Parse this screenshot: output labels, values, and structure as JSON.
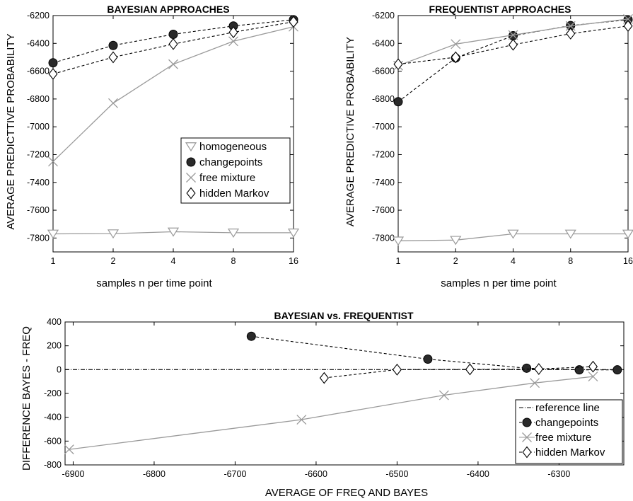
{
  "chart_data": [
    {
      "type": "line",
      "title": "BAYESIAN APPROACHES",
      "xlabel": "samples n per time point",
      "ylabel": "AVERAGE PREDICTTIVE PROBABILITY",
      "x_scale": "log2",
      "categories": [
        "1",
        "2",
        "4",
        "8",
        "16"
      ],
      "x": [
        1,
        2,
        4,
        8,
        16
      ],
      "ylim": [
        -7900,
        -6200
      ],
      "yticks": [
        -7800,
        -7600,
        -7400,
        -7200,
        -7000,
        -6800,
        -6600,
        -6400,
        -6200
      ],
      "grid": false,
      "legend_position": "right-middle",
      "series": [
        {
          "name": "homogeneous",
          "marker": "triangle-down",
          "line": "solid",
          "color": "#9a9a9a",
          "values": [
            -7770,
            -7768,
            -7755,
            -7762,
            -7762
          ]
        },
        {
          "name": "changepoints",
          "marker": "circle-filled",
          "line": "dashed",
          "color": "#000000",
          "values": [
            -6540,
            -6415,
            -6335,
            -6275,
            -6230
          ]
        },
        {
          "name": "free mixture",
          "marker": "x",
          "line": "solid",
          "color": "#9a9a9a",
          "values": [
            -7250,
            -6830,
            -6550,
            -6385,
            -6280
          ]
        },
        {
          "name": "hidden Markov",
          "marker": "diamond",
          "line": "dashed",
          "color": "#000000",
          "values": [
            -6620,
            -6500,
            -6405,
            -6320,
            -6245
          ]
        }
      ]
    },
    {
      "type": "line",
      "title": "FREQUENTIST APPROACHES",
      "xlabel": "samples n per time point",
      "ylabel": "AVERAGE PREDICTIVE PROBABILITY",
      "x_scale": "log2",
      "categories": [
        "1",
        "2",
        "4",
        "8",
        "16"
      ],
      "x": [
        1,
        2,
        4,
        8,
        16
      ],
      "ylim": [
        -7900,
        -6200
      ],
      "yticks": [
        -7800,
        -7600,
        -7400,
        -7200,
        -7000,
        -6800,
        -6600,
        -6400,
        -6200
      ],
      "grid": false,
      "series": [
        {
          "name": "homogeneous",
          "marker": "triangle-down",
          "line": "solid",
          "color": "#9a9a9a",
          "values": [
            -7820,
            -7815,
            -7770,
            -7770,
            -7770
          ]
        },
        {
          "name": "changepoints",
          "marker": "circle-filled",
          "line": "dashed",
          "color": "#000000",
          "values": [
            -6820,
            -6505,
            -6345,
            -6272,
            -6230
          ]
        },
        {
          "name": "free mixture",
          "marker": "x",
          "line": "solid",
          "color": "#9a9a9a",
          "values": [
            -6560,
            -6405,
            -6340,
            -6275,
            -6225
          ]
        },
        {
          "name": "hidden Markov",
          "marker": "diamond",
          "line": "dashed",
          "color": "#000000",
          "values": [
            -6550,
            -6500,
            -6410,
            -6330,
            -6275
          ]
        }
      ]
    },
    {
      "type": "line",
      "title": "BAYESIAN vs. FREQUENTIST",
      "xlabel": "AVERAGE OF FREQ AND BAYES",
      "ylabel": "DIFFERENCE BAYES - FREQ",
      "xlim": [
        -6910,
        -6220
      ],
      "xticks": [
        -6900,
        -6800,
        -6700,
        -6600,
        -6500,
        -6400,
        -6300
      ],
      "ylim": [
        -800,
        400
      ],
      "yticks": [
        -800,
        -600,
        -400,
        -200,
        0,
        200,
        400
      ],
      "grid": false,
      "legend_position": "bottom-right",
      "series": [
        {
          "name": "reference line",
          "marker": "none",
          "line": "dashdot",
          "color": "#000000",
          "x": [
            -6910,
            -6220
          ],
          "y": [
            0,
            0
          ]
        },
        {
          "name": "changepoints",
          "marker": "circle-filled",
          "line": "dashed",
          "color": "#000000",
          "x": [
            -6680,
            -6462,
            -6340,
            -6275,
            -6228
          ],
          "y": [
            280,
            88,
            12,
            -2,
            -2
          ]
        },
        {
          "name": "free mixture",
          "marker": "x",
          "line": "solid",
          "color": "#9a9a9a",
          "x": [
            -6905,
            -6618,
            -6442,
            -6330,
            -6258
          ],
          "y": [
            -670,
            -420,
            -215,
            -112,
            -58
          ]
        },
        {
          "name": "hidden Markov",
          "marker": "diamond",
          "line": "dashed",
          "color": "#000000",
          "x": [
            -6590,
            -6500,
            -6410,
            -6325,
            -6258
          ],
          "y": [
            -70,
            0,
            2,
            5,
            25
          ]
        }
      ]
    }
  ]
}
